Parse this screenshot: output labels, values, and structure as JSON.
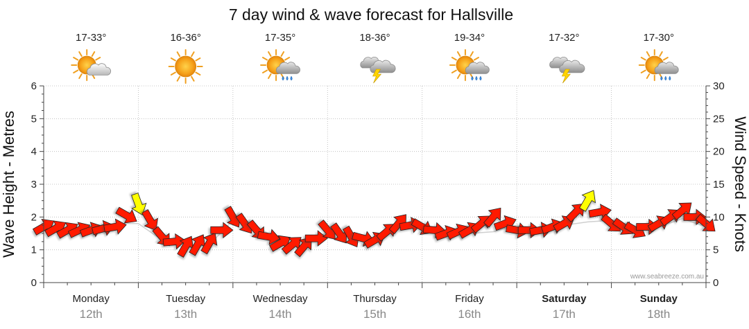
{
  "chart_data": {
    "type": "line",
    "title": "7 day wind & wave forecast for Hallsville",
    "ylabel": "Wave Height - Metres",
    "y2label": "Wind Speed - Knots",
    "ylim": [
      0,
      6
    ],
    "y2lim": [
      0,
      30
    ],
    "yticks": [
      0,
      1,
      2,
      3,
      4,
      5,
      6
    ],
    "y2ticks": [
      0,
      5,
      10,
      15,
      20,
      25,
      30
    ],
    "grid": true,
    "credit": "www.seabreeze.com.au",
    "days": [
      {
        "name": "Monday",
        "date": "12th",
        "temp": "17-33°",
        "icon": "partly-cloudy-icon",
        "weekend": false
      },
      {
        "name": "Tuesday",
        "date": "13th",
        "temp": "16-36°",
        "icon": "sunny-icon",
        "weekend": false
      },
      {
        "name": "Wednesday",
        "date": "14th",
        "temp": "17-35°",
        "icon": "sun-shower-icon",
        "weekend": false
      },
      {
        "name": "Thursday",
        "date": "15th",
        "temp": "18-36°",
        "icon": "thunderstorm-icon",
        "weekend": false
      },
      {
        "name": "Friday",
        "date": "16th",
        "temp": "19-34°",
        "icon": "sun-shower-icon",
        "weekend": false
      },
      {
        "name": "Saturday",
        "date": "17th",
        "temp": "17-32°",
        "icon": "thunderstorm-icon",
        "weekend": true
      },
      {
        "name": "Sunday",
        "date": "18th",
        "temp": "17-30°",
        "icon": "sun-shower-icon",
        "weekend": true
      }
    ],
    "series": [
      {
        "name": "Wave Height",
        "color": "#cfcfcf",
        "x": [
          0,
          0.25,
          0.5,
          0.75,
          1,
          1.25,
          1.5,
          1.75,
          2,
          2.25,
          2.5,
          2.75,
          3,
          3.25,
          3.5,
          3.75,
          4,
          4.25,
          4.5,
          4.75,
          5,
          5.25,
          5.5,
          5.75,
          6,
          6.25,
          6.5,
          6.75,
          7
        ],
        "y": [
          1.9,
          1.8,
          1.75,
          1.8,
          1.8,
          1.3,
          1.05,
          1.15,
          1.9,
          1.7,
          1.3,
          1.1,
          1.55,
          1.4,
          1.25,
          1.8,
          1.8,
          1.55,
          1.5,
          1.55,
          1.75,
          1.65,
          1.75,
          1.85,
          1.9,
          1.65,
          1.7,
          1.95,
          1.7
        ]
      },
      {
        "name": "Wind Speed",
        "color": "#ff1a00",
        "strong_color": "#ffff00",
        "x": [
          0,
          0.25,
          0.5,
          0.75,
          1,
          1.25,
          1.5,
          1.75,
          2,
          2.25,
          2.5,
          2.75,
          3,
          3.25,
          3.5,
          3.75,
          4,
          4.25,
          4.5,
          4.75,
          5,
          5.25,
          5.5,
          5.75,
          6,
          6.25,
          6.5,
          6.75,
          7
        ],
        "y": [
          8.5,
          8,
          8,
          8.5,
          12,
          7,
          5.5,
          6,
          10,
          8,
          6,
          5.5,
          8,
          7,
          6.5,
          9,
          8.5,
          7.5,
          8,
          10,
          8,
          8,
          9,
          12.5,
          9,
          8,
          9,
          11,
          9
        ],
        "dir_deg": [
          60,
          60,
          70,
          80,
          160,
          140,
          30,
          30,
          150,
          140,
          60,
          40,
          140,
          150,
          60,
          40,
          120,
          70,
          60,
          40,
          100,
          80,
          60,
          30,
          130,
          120,
          60,
          50,
          130
        ]
      }
    ]
  }
}
